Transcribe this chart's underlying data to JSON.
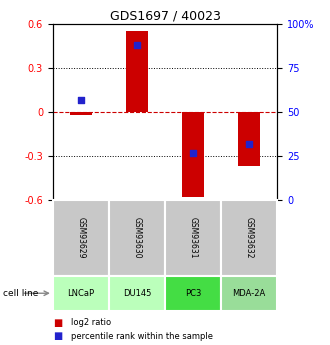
{
  "title": "GDS1697 / 40023",
  "samples": [
    "GSM93629",
    "GSM93630",
    "GSM93631",
    "GSM93632"
  ],
  "cell_lines": [
    "LNCaP",
    "DU145",
    "PC3",
    "MDA-2A"
  ],
  "log2_ratios": [
    -0.02,
    0.55,
    -0.58,
    -0.37
  ],
  "percentile_ranks": [
    57,
    88,
    27,
    32
  ],
  "ylim_left": [
    -0.6,
    0.6
  ],
  "ylim_right": [
    0,
    100
  ],
  "yticks_left": [
    -0.6,
    -0.3,
    0,
    0.3,
    0.6
  ],
  "yticks_right": [
    0,
    25,
    50,
    75,
    100
  ],
  "bar_color": "#cc0000",
  "dot_color": "#2222cc",
  "zero_line_color": "#cc0000",
  "grid_color": "#000000",
  "sample_box_color": "#c8c8c8",
  "cell_line_colors": [
    "#bbffbb",
    "#bbffbb",
    "#44dd44",
    "#99dd99"
  ],
  "cell_line_label": "cell line",
  "legend_bar_label": "log2 ratio",
  "legend_dot_label": "percentile rank within the sample",
  "bar_width": 0.4,
  "title_fontsize": 9,
  "tick_fontsize": 7,
  "label_fontsize": 7
}
